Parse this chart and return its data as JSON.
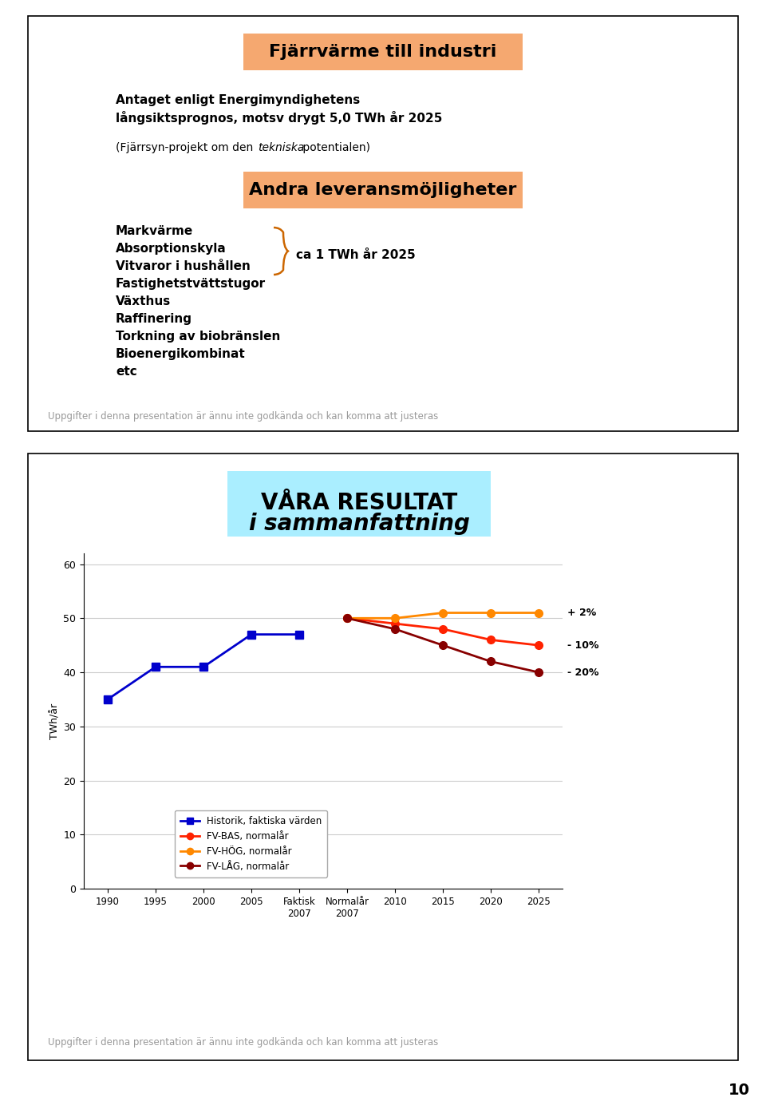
{
  "page_bg": "#ffffff",
  "slide1_border_color": "#000000",
  "slide1_bg": "#ffffff",
  "title1_text": "Fjärrvärme till industri",
  "title1_bg": "#F5A870",
  "title1_fontsize": 16,
  "title2_text": "Andra leveransmöjligheter",
  "title2_bg": "#F5A870",
  "title2_fontsize": 16,
  "list_items": [
    "Markvärme",
    "Absorptionskyla",
    "Vitvaror i hushållen",
    "Fastighetstvättstugor",
    "Växthus",
    "Raffinering",
    "Torkning av biobränslen",
    "Bioenergikombinat",
    "etc"
  ],
  "brace_label": "ca 1 TWh år 2025",
  "disclaimer1": "Uppgifter i denna presentation är ännu inte godkända och kan komma att justeras",
  "slide2_border_color": "#000000",
  "slide2_bg": "#ffffff",
  "title3_bg": "#aaeeff",
  "title3_line1": "VÅRA RESULTAT",
  "title3_line2": "i sammanfattning",
  "title3_fontsize": 20,
  "ylabel": "TWh/år",
  "yticks": [
    0,
    10,
    20,
    30,
    40,
    50,
    60
  ],
  "xtick_labels": [
    "1990",
    "1995",
    "2000",
    "2005",
    "Faktisk\n2007",
    "Normalår\n2007",
    "2010",
    "2015",
    "2020",
    "2025"
  ],
  "xtick_positions": [
    0,
    1,
    2,
    3,
    4,
    5,
    6,
    7,
    8,
    9
  ],
  "historik_x": [
    0,
    1,
    2,
    3,
    4
  ],
  "historik_y": [
    35,
    41,
    41,
    47,
    47
  ],
  "bas_x": [
    5,
    6,
    7,
    8,
    9
  ],
  "bas_y": [
    50,
    49,
    48,
    46,
    45
  ],
  "hog_x": [
    5,
    6,
    7,
    8,
    9
  ],
  "hog_y": [
    50,
    50,
    51,
    51,
    51
  ],
  "lag_x": [
    5,
    6,
    7,
    8,
    9
  ],
  "lag_y": [
    50,
    48,
    45,
    42,
    40
  ],
  "historik_color": "#0000CC",
  "bas_color": "#FF2200",
  "hog_color": "#FF8800",
  "lag_color": "#880000",
  "label_2pct": "+ 2%",
  "label_10pct": "- 10%",
  "label_20pct": "- 20%",
  "legend_items": [
    {
      "label": "Historik, faktiska värden",
      "color": "#0000CC",
      "marker": "s"
    },
    {
      "label": "FV-BAS, normalår",
      "color": "#FF2200",
      "marker": "o"
    },
    {
      "label": "FV-HÖG, normalår",
      "color": "#FF8800",
      "marker": "o"
    },
    {
      "label": "FV-LÅG, normalår",
      "color": "#880000",
      "marker": "o"
    }
  ],
  "disclaimer2": "Uppgifter i denna presentation är ännu inte godkända och kan komma att justeras",
  "page_number": "10"
}
